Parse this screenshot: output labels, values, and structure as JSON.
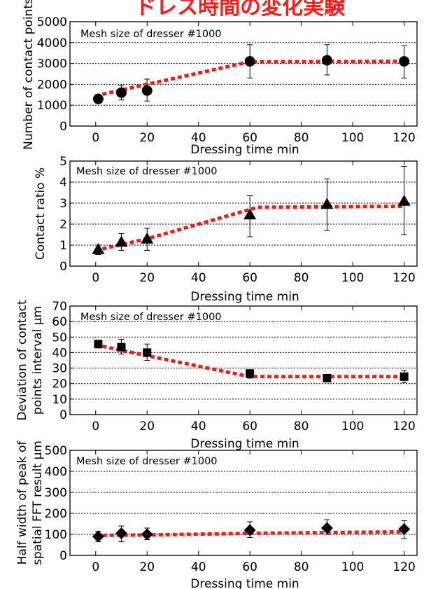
{
  "title": "ドレス時間の変化実験",
  "chart_data": [
    {
      "type": "scatter",
      "annotation": "Mesh size of dresser #1000",
      "xlabel": "Dressing time min",
      "ylabel": [
        "Number of contact points"
      ],
      "xlim": [
        -10,
        125
      ],
      "ylim": [
        0,
        5000
      ],
      "xticks": [
        0,
        20,
        40,
        60,
        80,
        100,
        120
      ],
      "yticks": [
        0,
        1000,
        2000,
        3000,
        4000,
        5000
      ],
      "grid": "horizontal-dotted",
      "marker": "circle",
      "points": [
        {
          "x": 1,
          "y": 1300,
          "err_lo": 1150,
          "err_hi": 1450
        },
        {
          "x": 10,
          "y": 1600,
          "err_lo": 1250,
          "err_hi": 1950
        },
        {
          "x": 20,
          "y": 1700,
          "err_lo": 1200,
          "err_hi": 2250
        },
        {
          "x": 60,
          "y": 3100,
          "err_lo": 2300,
          "err_hi": 3900
        },
        {
          "x": 90,
          "y": 3150,
          "err_lo": 2450,
          "err_hi": 3900
        },
        {
          "x": 120,
          "y": 3100,
          "err_lo": 2300,
          "err_hi": 3850
        }
      ],
      "trend": [
        [
          0,
          1450
        ],
        [
          20,
          2000
        ],
        [
          60,
          3080
        ],
        [
          120,
          3100
        ]
      ]
    },
    {
      "type": "scatter",
      "annotation": "Mesh size of dresser #1000",
      "xlabel": "Dressing time min",
      "ylabel": [
        "Contact ratio %"
      ],
      "xlim": [
        -10,
        125
      ],
      "ylim": [
        0,
        5
      ],
      "xticks": [
        0,
        20,
        40,
        60,
        80,
        100,
        120
      ],
      "yticks": [
        0,
        1,
        2,
        3,
        4,
        5
      ],
      "grid": "horizontal-dotted",
      "marker": "triangle",
      "points": [
        {
          "x": 1,
          "y": 0.8,
          "err_lo": 0.55,
          "err_hi": 1.0
        },
        {
          "x": 10,
          "y": 1.15,
          "err_lo": 0.75,
          "err_hi": 1.55
        },
        {
          "x": 20,
          "y": 1.3,
          "err_lo": 0.75,
          "err_hi": 1.8
        },
        {
          "x": 60,
          "y": 2.45,
          "err_lo": 1.4,
          "err_hi": 3.35
        },
        {
          "x": 90,
          "y": 2.95,
          "err_lo": 1.7,
          "err_hi": 4.15
        },
        {
          "x": 120,
          "y": 3.1,
          "err_lo": 1.5,
          "err_hi": 4.75
        }
      ],
      "trend": [
        [
          0,
          0.75
        ],
        [
          20,
          1.3
        ],
        [
          63,
          2.8
        ],
        [
          120,
          2.85
        ]
      ]
    },
    {
      "type": "scatter",
      "annotation": "Mesh size of dresser #1000",
      "xlabel": "Dressing time min",
      "ylabel": [
        "Deviation of contact",
        "points interval µm"
      ],
      "xlim": [
        -10,
        125
      ],
      "ylim": [
        0,
        70
      ],
      "xticks": [
        0,
        20,
        40,
        60,
        80,
        100,
        120
      ],
      "yticks": [
        0,
        10,
        20,
        30,
        40,
        50,
        60,
        70
      ],
      "grid": "horizontal-dotted",
      "marker": "square",
      "points": [
        {
          "x": 1,
          "y": 45.5,
          "err_lo": 43,
          "err_hi": 48
        },
        {
          "x": 10,
          "y": 43.5,
          "err_lo": 39,
          "err_hi": 48.5
        },
        {
          "x": 20,
          "y": 40,
          "err_lo": 35,
          "err_hi": 45.5
        },
        {
          "x": 60,
          "y": 26.5,
          "err_lo": 23.5,
          "err_hi": 29
        },
        {
          "x": 90,
          "y": 23.5,
          "err_lo": 21.5,
          "err_hi": 26
        },
        {
          "x": 120,
          "y": 24.5,
          "err_lo": 20.5,
          "err_hi": 28.5
        }
      ],
      "trend": [
        [
          0,
          45
        ],
        [
          20,
          38
        ],
        [
          60,
          24.5
        ],
        [
          120,
          24.5
        ]
      ]
    },
    {
      "type": "scatter",
      "annotation": "Mesh size of dresser #1000",
      "xlabel": "Dressing time min",
      "ylabel": [
        "Half width of peak of",
        "spatial FFT result  µm"
      ],
      "xlim": [
        -10,
        125
      ],
      "ylim": [
        0,
        500
      ],
      "xticks": [
        0,
        20,
        40,
        60,
        80,
        100,
        120
      ],
      "yticks": [
        0,
        100,
        200,
        300,
        400,
        500
      ],
      "grid": "horizontal-dotted",
      "marker": "diamond",
      "points": [
        {
          "x": 1,
          "y": 90,
          "err_lo": 65,
          "err_hi": 115
        },
        {
          "x": 10,
          "y": 105,
          "err_lo": 65,
          "err_hi": 140
        },
        {
          "x": 20,
          "y": 100,
          "err_lo": 75,
          "err_hi": 130
        },
        {
          "x": 60,
          "y": 120,
          "err_lo": 85,
          "err_hi": 160
        },
        {
          "x": 90,
          "y": 130,
          "err_lo": 100,
          "err_hi": 170
        },
        {
          "x": 120,
          "y": 125,
          "err_lo": 80,
          "err_hi": 165
        }
      ],
      "trend": [
        [
          0,
          95
        ],
        [
          20,
          97
        ],
        [
          60,
          105
        ],
        [
          120,
          112
        ]
      ]
    }
  ],
  "colors": {
    "title": "#ff1a1a",
    "trend": "#e8201a",
    "marker": "#000000",
    "grid": "#000000"
  }
}
